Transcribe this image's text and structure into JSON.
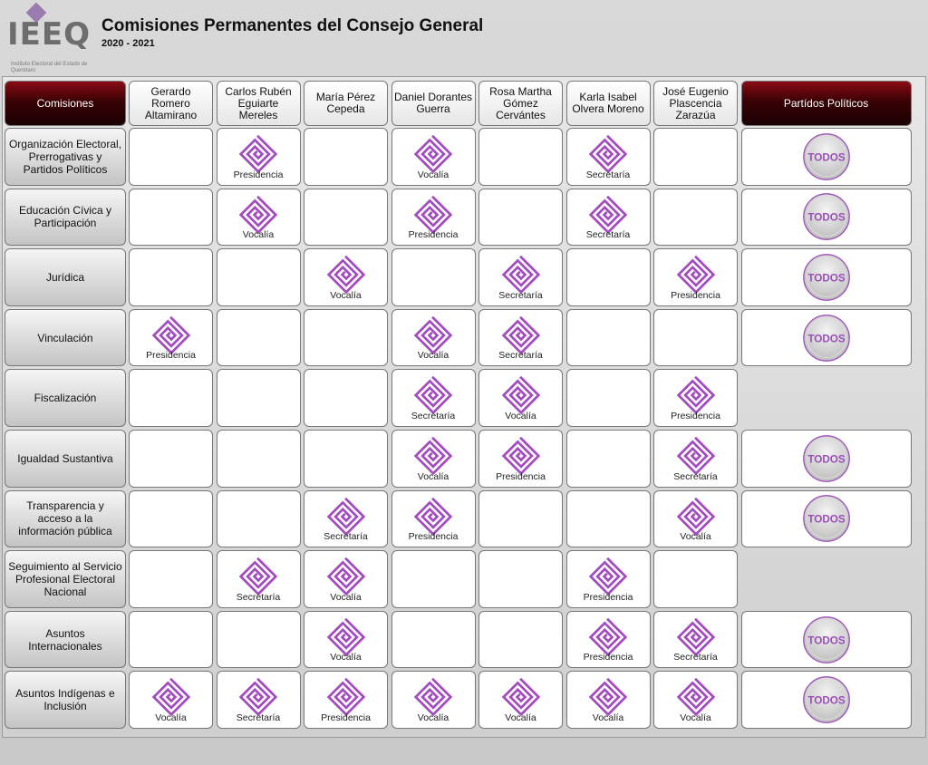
{
  "header": {
    "logo_text": "IEEQ",
    "logo_subtitle": "Instituto Electoral del Estado de Querétaro",
    "title": "Comisiones Permanentes del Consejo General",
    "period": "2020 - 2021"
  },
  "table": {
    "corner_label": "Comisiones",
    "parties_label": "Partídos Políticos",
    "todos_label": "TODOS",
    "columns": [
      "Gerardo Romero Altamirano",
      "Carlos Rubén Eguiarte Mereles",
      "María Pérez Cepeda",
      "Daniel Dorantes Guerra",
      "Rosa Martha Gómez Cervántes",
      "Karla Isabel Olvera Moreno",
      "José Eugenio Plascencia Zarazúa"
    ],
    "rows": [
      {
        "name": "Organización Electoral, Prerrogativas y Partidos Políticos",
        "roles": [
          "",
          "Presidencia",
          "",
          "Vocalía",
          "",
          "Secretaría",
          ""
        ],
        "todos": true
      },
      {
        "name": "Educación Cívica y Participación",
        "roles": [
          "",
          "Vocalía",
          "",
          "Presidencia",
          "",
          "Secretaría",
          ""
        ],
        "todos": true
      },
      {
        "name": "Jurídica",
        "roles": [
          "",
          "",
          "Vocalía",
          "",
          "Secretaría",
          "",
          "Presidencia"
        ],
        "todos": true
      },
      {
        "name": "Vinculación",
        "roles": [
          "Presidencia",
          "",
          "",
          "Vocalía",
          "Secretaría",
          "",
          ""
        ],
        "todos": true
      },
      {
        "name": "Fiscalización",
        "roles": [
          "",
          "",
          "",
          "Secretaría",
          "Vocalía",
          "",
          "Presidencia"
        ],
        "todos": false
      },
      {
        "name": "Igualdad Sustantiva",
        "roles": [
          "",
          "",
          "",
          "Vocalía",
          "Presidencia",
          "",
          "Secretaría"
        ],
        "todos": true
      },
      {
        "name": "Transparencia y acceso a la información pública",
        "roles": [
          "",
          "",
          "Secretaría",
          "Presidencia",
          "",
          "",
          "Vocalía"
        ],
        "todos": true
      },
      {
        "name": "Seguimiento al Servicio Profesional Electoral Nacional",
        "roles": [
          "",
          "Secretaría",
          "Vocalía",
          "",
          "",
          "Presidencia",
          ""
        ],
        "todos": false
      },
      {
        "name": "Asuntos Internacionales",
        "roles": [
          "",
          "",
          "Vocalía",
          "",
          "",
          "Presidencia",
          "Secretaría"
        ],
        "todos": true
      },
      {
        "name": "Asuntos Indígenas e Inclusión",
        "roles": [
          "Vocalía",
          "Secretaría",
          "Presidencia",
          "Vocalía",
          "Vocalía",
          "Vocalía",
          "Vocalía"
        ],
        "todos": true
      }
    ]
  },
  "colors": {
    "header_dark": "#3a0205",
    "icon_purple": "#a24cc0",
    "todos_purple": "#9b4fb8"
  }
}
